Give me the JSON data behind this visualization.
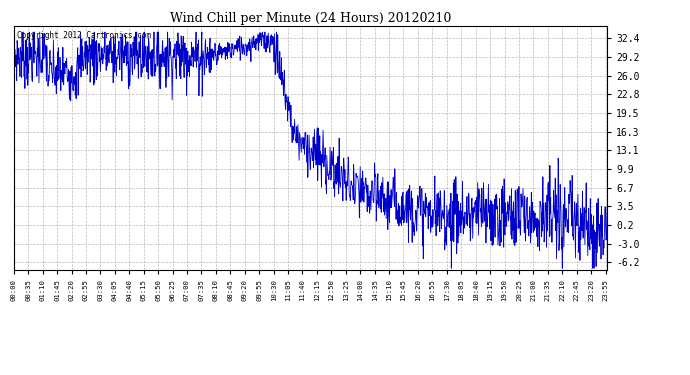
{
  "title": "Wind Chill per Minute (24 Hours) 20120210",
  "copyright_text": "Copyright 2012 Cartronics.com",
  "line_color": "#0000CC",
  "background_color": "#ffffff",
  "grid_color": "#aaaaaa",
  "yticks": [
    32.4,
    29.2,
    26.0,
    22.8,
    19.5,
    16.3,
    13.1,
    9.9,
    6.7,
    3.5,
    0.2,
    -3.0,
    -6.2
  ],
  "ylim": [
    -7.5,
    34.5
  ],
  "xlim": [
    0,
    1439
  ],
  "xtick_minutes": [
    0,
    35,
    70,
    105,
    140,
    175,
    210,
    245,
    280,
    315,
    350,
    385,
    420,
    455,
    490,
    525,
    560,
    595,
    630,
    665,
    700,
    735,
    770,
    805,
    840,
    875,
    910,
    945,
    980,
    1015,
    1050,
    1085,
    1120,
    1155,
    1190,
    1225,
    1260,
    1295,
    1330,
    1365,
    1400,
    1435
  ],
  "xtick_labels": [
    "00:00",
    "00:35",
    "01:10",
    "01:45",
    "02:20",
    "02:55",
    "03:30",
    "04:05",
    "04:40",
    "05:15",
    "05:50",
    "06:25",
    "07:00",
    "07:35",
    "08:10",
    "08:45",
    "09:20",
    "09:55",
    "10:30",
    "11:05",
    "11:40",
    "12:15",
    "12:50",
    "13:25",
    "14:00",
    "14:35",
    "15:10",
    "15:45",
    "16:20",
    "16:55",
    "17:30",
    "18:05",
    "18:40",
    "19:15",
    "19:50",
    "20:25",
    "21:00",
    "21:35",
    "22:10",
    "22:45",
    "23:20",
    "23:55"
  ],
  "figwidth": 6.9,
  "figheight": 3.75,
  "dpi": 100
}
